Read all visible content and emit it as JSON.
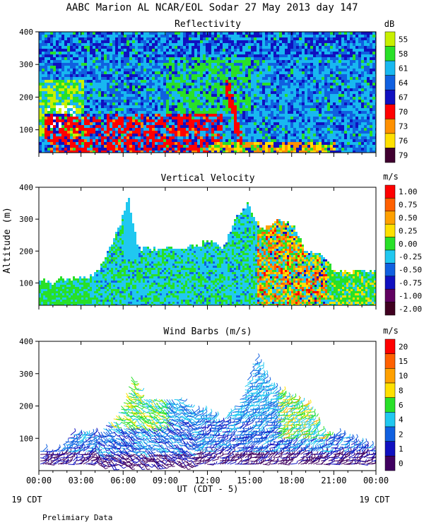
{
  "title": "AABC Marion AL NCAR/EOL Sodar  27 May 2013 day 147",
  "footer": {
    "x_title": "UT  (CDT - 5)",
    "left_date": "19 CDT",
    "right_date": "19 CDT",
    "note": "Prelimiary Data"
  },
  "chart_data": [
    {
      "type": "heatmap",
      "title": "Reflectivity",
      "ylabel": "",
      "xlim": [
        0,
        24
      ],
      "ylim": [
        30,
        400
      ],
      "yticks": [
        100,
        200,
        300,
        400
      ],
      "xticks": [
        "00:00",
        "03:00",
        "06:00",
        "09:00",
        "12:00",
        "15:00",
        "18:00",
        "21:00",
        "00:00"
      ],
      "colorbar": {
        "unit": "dB",
        "labels": [
          "55",
          "58",
          "61",
          "64",
          "67",
          "70",
          "73",
          "76",
          "79"
        ],
        "colors": [
          "#c8f000",
          "#28e028",
          "#18b8f0",
          "#1060e0",
          "#1010c0",
          "#ff0000",
          "#ff9000",
          "#ffe000",
          "#400030"
        ]
      }
    },
    {
      "type": "heatmap",
      "title": "Vertical Velocity",
      "ylabel": "Altitude (m)",
      "xlim": [
        0,
        24
      ],
      "ylim": [
        30,
        400
      ],
      "yticks": [
        100,
        200,
        300,
        400
      ],
      "xticks": [
        "00:00",
        "03:00",
        "06:00",
        "09:00",
        "12:00",
        "15:00",
        "18:00",
        "21:00",
        "00:00"
      ],
      "colorbar": {
        "unit": "m/s",
        "labels": [
          "1.00",
          "0.75",
          "0.50",
          "0.25",
          "0.00",
          "-0.25",
          "-0.50",
          "-0.75",
          "-1.00",
          "-2.00"
        ],
        "colors": [
          "#ff0000",
          "#ff6000",
          "#ffa000",
          "#ffe000",
          "#28e028",
          "#20c8f0",
          "#1060e0",
          "#1010c0",
          "#600060",
          "#400020"
        ]
      }
    },
    {
      "type": "scatter",
      "title": "Wind Barbs (m/s)",
      "ylabel": "",
      "xlim": [
        0,
        24
      ],
      "ylim": [
        0,
        400
      ],
      "yticks": [
        100,
        200,
        300,
        400
      ],
      "xticks": [
        "00:00",
        "03:00",
        "06:00",
        "09:00",
        "12:00",
        "15:00",
        "18:00",
        "21:00",
        "00:00"
      ],
      "colorbar": {
        "unit": "m/s",
        "labels": [
          "20",
          "15",
          "10",
          "8",
          "6",
          "4",
          "2",
          "1",
          "0"
        ],
        "colors": [
          "#ff0000",
          "#ff6000",
          "#ffa000",
          "#ffe000",
          "#28e028",
          "#20c8f0",
          "#1060e0",
          "#1010c0",
          "#400060"
        ]
      }
    }
  ]
}
